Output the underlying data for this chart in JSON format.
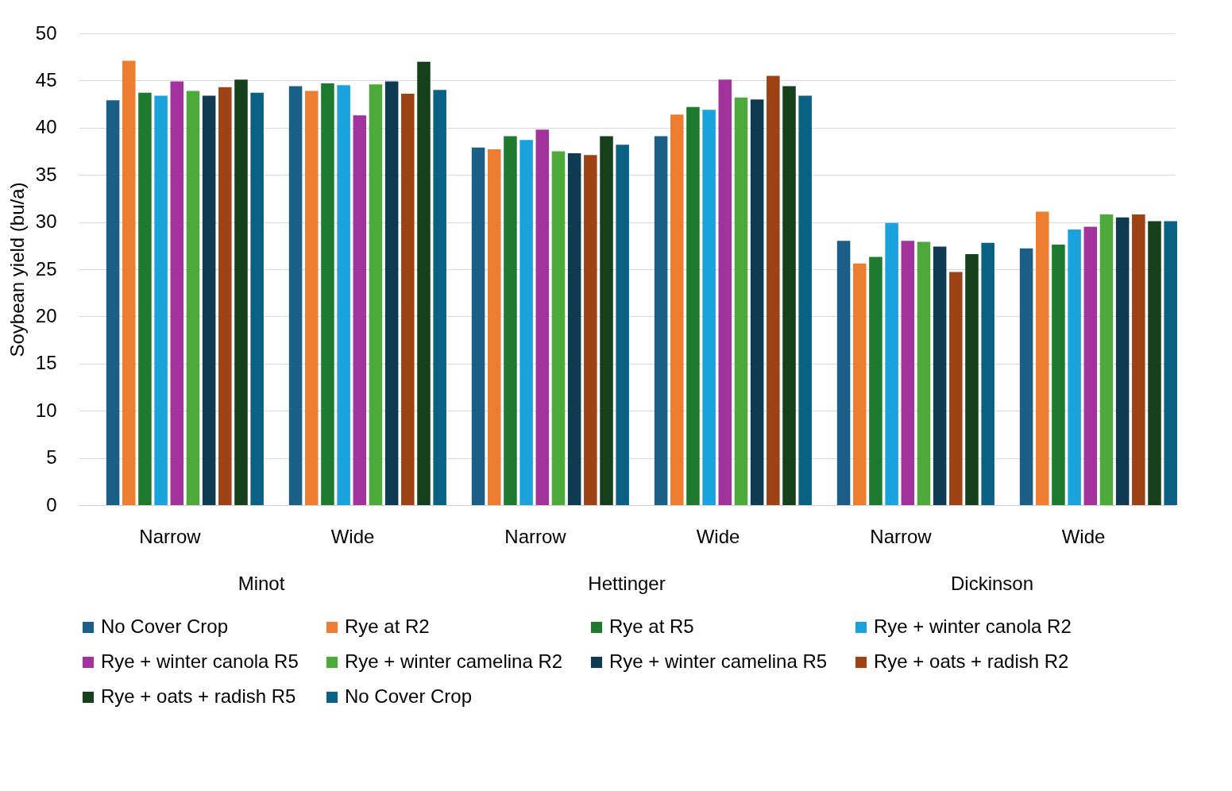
{
  "chart_data": {
    "type": "bar",
    "ylabel": "Soybean yield (bu/a)",
    "categories": [
      "Narrow",
      "Wide",
      "Narrow",
      "Wide",
      "Narrow",
      "Wide"
    ],
    "annotations": [
      "Minot",
      "Hettinger",
      "Dickinson"
    ],
    "ylim": [
      0,
      50
    ],
    "yticks": [
      0,
      5,
      10,
      15,
      20,
      25,
      30,
      35,
      40,
      45,
      50
    ],
    "grid": "y",
    "legend": "bottom",
    "series": [
      {
        "name": "No Cover Crop",
        "color": "#1b5f86",
        "values": [
          42.9,
          44.4,
          37.9,
          39.1,
          28.0,
          27.2
        ]
      },
      {
        "name": "Rye at R2",
        "color": "#ed7d31",
        "values": [
          47.1,
          43.9,
          37.7,
          41.4,
          25.6,
          31.1
        ]
      },
      {
        "name": "Rye at R5",
        "color": "#1e7a2e",
        "values": [
          43.7,
          44.7,
          39.1,
          42.2,
          26.3,
          27.6
        ]
      },
      {
        "name": "Rye + winter canola R2",
        "color": "#1aa2dc",
        "values": [
          43.4,
          44.5,
          38.7,
          41.9,
          29.9,
          29.2
        ]
      },
      {
        "name": "Rye + winter canola R5",
        "color": "#a2329c",
        "values": [
          44.9,
          41.3,
          39.8,
          45.1,
          28.0,
          29.5
        ]
      },
      {
        "name": "Rye + winter camelina R2",
        "color": "#4ea93b",
        "values": [
          43.9,
          44.6,
          37.5,
          43.2,
          27.9,
          30.8
        ]
      },
      {
        "name": "Rye + winter camelina R5",
        "color": "#0f3b52",
        "values": [
          43.4,
          44.9,
          37.3,
          43.0,
          27.4,
          30.5
        ]
      },
      {
        "name": "Rye + oats + radish R2",
        "color": "#9c4215",
        "values": [
          44.3,
          43.6,
          37.1,
          45.5,
          24.7,
          30.8
        ]
      },
      {
        "name": "Rye + oats + radish R5",
        "color": "#163f1c",
        "values": [
          45.1,
          47.0,
          39.1,
          44.4,
          26.6,
          30.1
        ]
      },
      {
        "name": "No Cover Crop",
        "color": "#0b6184",
        "values": [
          43.7,
          44.0,
          38.2,
          43.4,
          27.8,
          30.1
        ]
      }
    ]
  }
}
